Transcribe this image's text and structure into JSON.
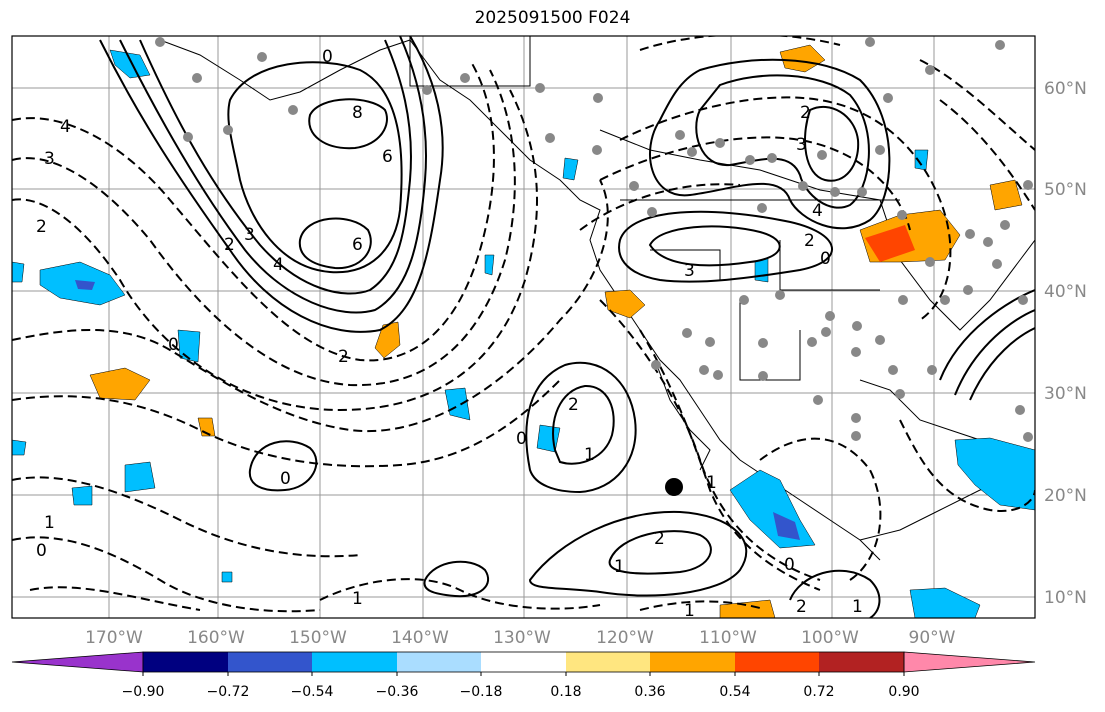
{
  "title": "2025091500 F024",
  "lon_ticks": [
    "170°W",
    "160°W",
    "150°W",
    "140°W",
    "130°W",
    "120°W",
    "110°W",
    "100°W",
    "90°W"
  ],
  "lat_ticks": [
    "60°N",
    "50°N",
    "40°N",
    "30°N",
    "20°N",
    "10°N"
  ],
  "colorbar": {
    "ticks": [
      "−0.90",
      "−0.72",
      "−0.54",
      "−0.36",
      "−0.18",
      "0.18",
      "0.36",
      "0.54",
      "0.72",
      "0.90"
    ],
    "colors": [
      "#9933cc",
      "#000080",
      "#3355cc",
      "#00bfff",
      "#aaddff",
      "#ffffff",
      "#ffe680",
      "#ffa500",
      "#ff4500",
      "#b22222",
      "#ff88aa"
    ]
  },
  "contour_labels": [
    "0",
    "8",
    "6",
    "6",
    "4",
    "3",
    "2",
    "2",
    "0",
    "4",
    "3",
    "2",
    "1",
    "0",
    "2",
    "1",
    "0",
    "2",
    "1",
    "0",
    "1",
    "0",
    "1",
    "3",
    "2",
    "4",
    "3",
    "2",
    "0",
    "1",
    "2",
    "1"
  ]
}
